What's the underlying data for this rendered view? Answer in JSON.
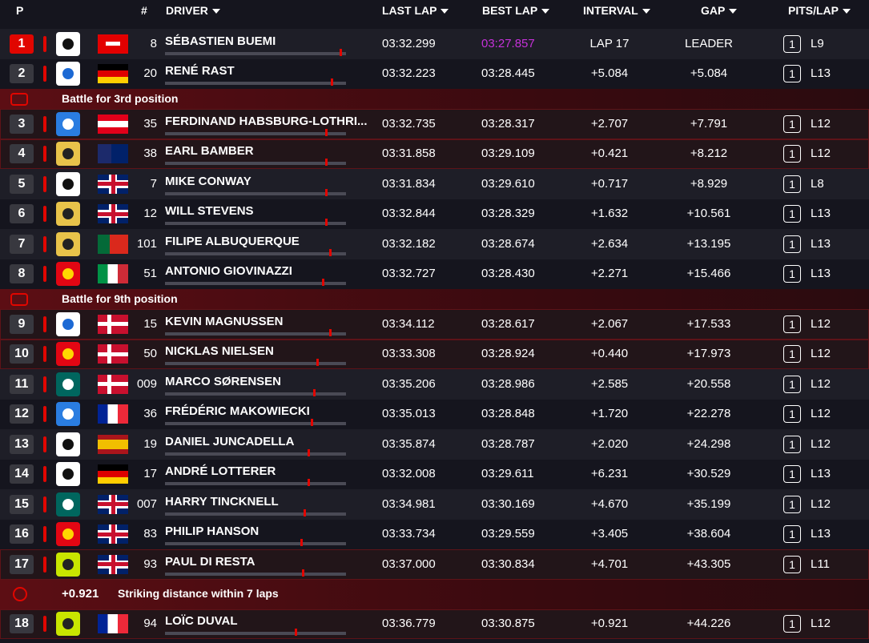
{
  "header": {
    "position": "P",
    "number": "#",
    "driver": "DRIVER",
    "last_lap": "LAST LAP",
    "best_lap": "BEST LAP",
    "interval": "INTERVAL",
    "gap": "GAP",
    "pits_lap": "PITS/LAP"
  },
  "drivers": [
    {
      "position": 1,
      "number": "8",
      "driver": "SÉBASTIEN BUEMI",
      "last_lap": "03:32.299",
      "best_lap": "03:27.857",
      "interval": "LAP 17",
      "gap": "LEADER",
      "pits": 1,
      "lap": "L9"
    },
    {
      "position": 2,
      "number": "20",
      "driver": "RENÉ RAST",
      "last_lap": "03:32.223",
      "best_lap": "03:28.445",
      "interval": "+5.084",
      "gap": "+5.084",
      "pits": 1,
      "lap": "L13"
    },
    {
      "position": 3,
      "number": "35",
      "driver": "FERDINAND HABSBURG-LOTHRI...",
      "last_lap": "03:32.735",
      "best_lap": "03:28.317",
      "interval": "+2.707",
      "gap": "+7.791",
      "pits": 1,
      "lap": "L12"
    },
    {
      "position": 4,
      "number": "38",
      "driver": "EARL BAMBER",
      "last_lap": "03:31.858",
      "best_lap": "03:29.109",
      "interval": "+0.421",
      "gap": "+8.212",
      "pits": 1,
      "lap": "L12"
    },
    {
      "position": 5,
      "number": "7",
      "driver": "MIKE CONWAY",
      "last_lap": "03:31.834",
      "best_lap": "03:29.610",
      "interval": "+0.717",
      "gap": "+8.929",
      "pits": 1,
      "lap": "L8"
    },
    {
      "position": 6,
      "number": "12",
      "driver": "WILL STEVENS",
      "last_lap": "03:32.844",
      "best_lap": "03:28.329",
      "interval": "+1.632",
      "gap": "+10.561",
      "pits": 1,
      "lap": "L13"
    },
    {
      "position": 7,
      "number": "101",
      "driver": "FILIPE ALBUQUERQUE",
      "last_lap": "03:32.182",
      "best_lap": "03:28.674",
      "interval": "+2.634",
      "gap": "+13.195",
      "pits": 1,
      "lap": "L13"
    },
    {
      "position": 8,
      "number": "51",
      "driver": "ANTONIO GIOVINAZZI",
      "last_lap": "03:32.727",
      "best_lap": "03:28.430",
      "interval": "+2.271",
      "gap": "+15.466",
      "pits": 1,
      "lap": "L13"
    },
    {
      "position": 9,
      "number": "15",
      "driver": "KEVIN MAGNUSSEN",
      "last_lap": "03:34.112",
      "best_lap": "03:28.617",
      "interval": "+2.067",
      "gap": "+17.533",
      "pits": 1,
      "lap": "L12"
    },
    {
      "position": 10,
      "number": "50",
      "driver": "NICKLAS NIELSEN",
      "last_lap": "03:33.308",
      "best_lap": "03:28.924",
      "interval": "+0.440",
      "gap": "+17.973",
      "pits": 1,
      "lap": "L12"
    },
    {
      "position": 11,
      "number": "009",
      "driver": "MARCO SØRENSEN",
      "last_lap": "03:35.206",
      "best_lap": "03:28.986",
      "interval": "+2.585",
      "gap": "+20.558",
      "pits": 1,
      "lap": "L12"
    },
    {
      "position": 12,
      "number": "36",
      "driver": "FRÉDÉRIC MAKOWIECKI",
      "last_lap": "03:35.013",
      "best_lap": "03:28.848",
      "interval": "+1.720",
      "gap": "+22.278",
      "pits": 1,
      "lap": "L12"
    },
    {
      "position": 13,
      "number": "19",
      "driver": "DANIEL JUNCADELLA",
      "last_lap": "03:35.874",
      "best_lap": "03:28.787",
      "interval": "+2.020",
      "gap": "+24.298",
      "pits": 1,
      "lap": "L12"
    },
    {
      "position": 14,
      "number": "17",
      "driver": "ANDRÉ LOTTERER",
      "last_lap": "03:32.008",
      "best_lap": "03:29.611",
      "interval": "+6.231",
      "gap": "+30.529",
      "pits": 1,
      "lap": "L13"
    },
    {
      "position": 15,
      "number": "007",
      "driver": "HARRY TINCKNELL",
      "last_lap": "03:34.981",
      "best_lap": "03:30.169",
      "interval": "+4.670",
      "gap": "+35.199",
      "pits": 1,
      "lap": "L12"
    },
    {
      "position": 16,
      "number": "83",
      "driver": "PHILIP HANSON",
      "last_lap": "03:33.734",
      "best_lap": "03:29.559",
      "interval": "+3.405",
      "gap": "+38.604",
      "pits": 1,
      "lap": "L13"
    },
    {
      "position": 17,
      "number": "93",
      "driver": "PAUL DI RESTA",
      "last_lap": "03:37.000",
      "best_lap": "03:30.834",
      "interval": "+4.701",
      "gap": "+43.305",
      "pits": 1,
      "lap": "L11"
    },
    {
      "position": 18,
      "number": "94",
      "driver": "LOÏC DUVAL",
      "last_lap": "03:36.779",
      "best_lap": "03:30.875",
      "interval": "+0.921",
      "gap": "+44.226",
      "pits": 1,
      "lap": "L12"
    }
  ],
  "banners": [
    {
      "text": "Battle for 3rd position"
    },
    {
      "text": "Battle for 9th position"
    },
    {
      "gap": "+0.921",
      "text": "Striking distance within 7 laps"
    }
  ]
}
